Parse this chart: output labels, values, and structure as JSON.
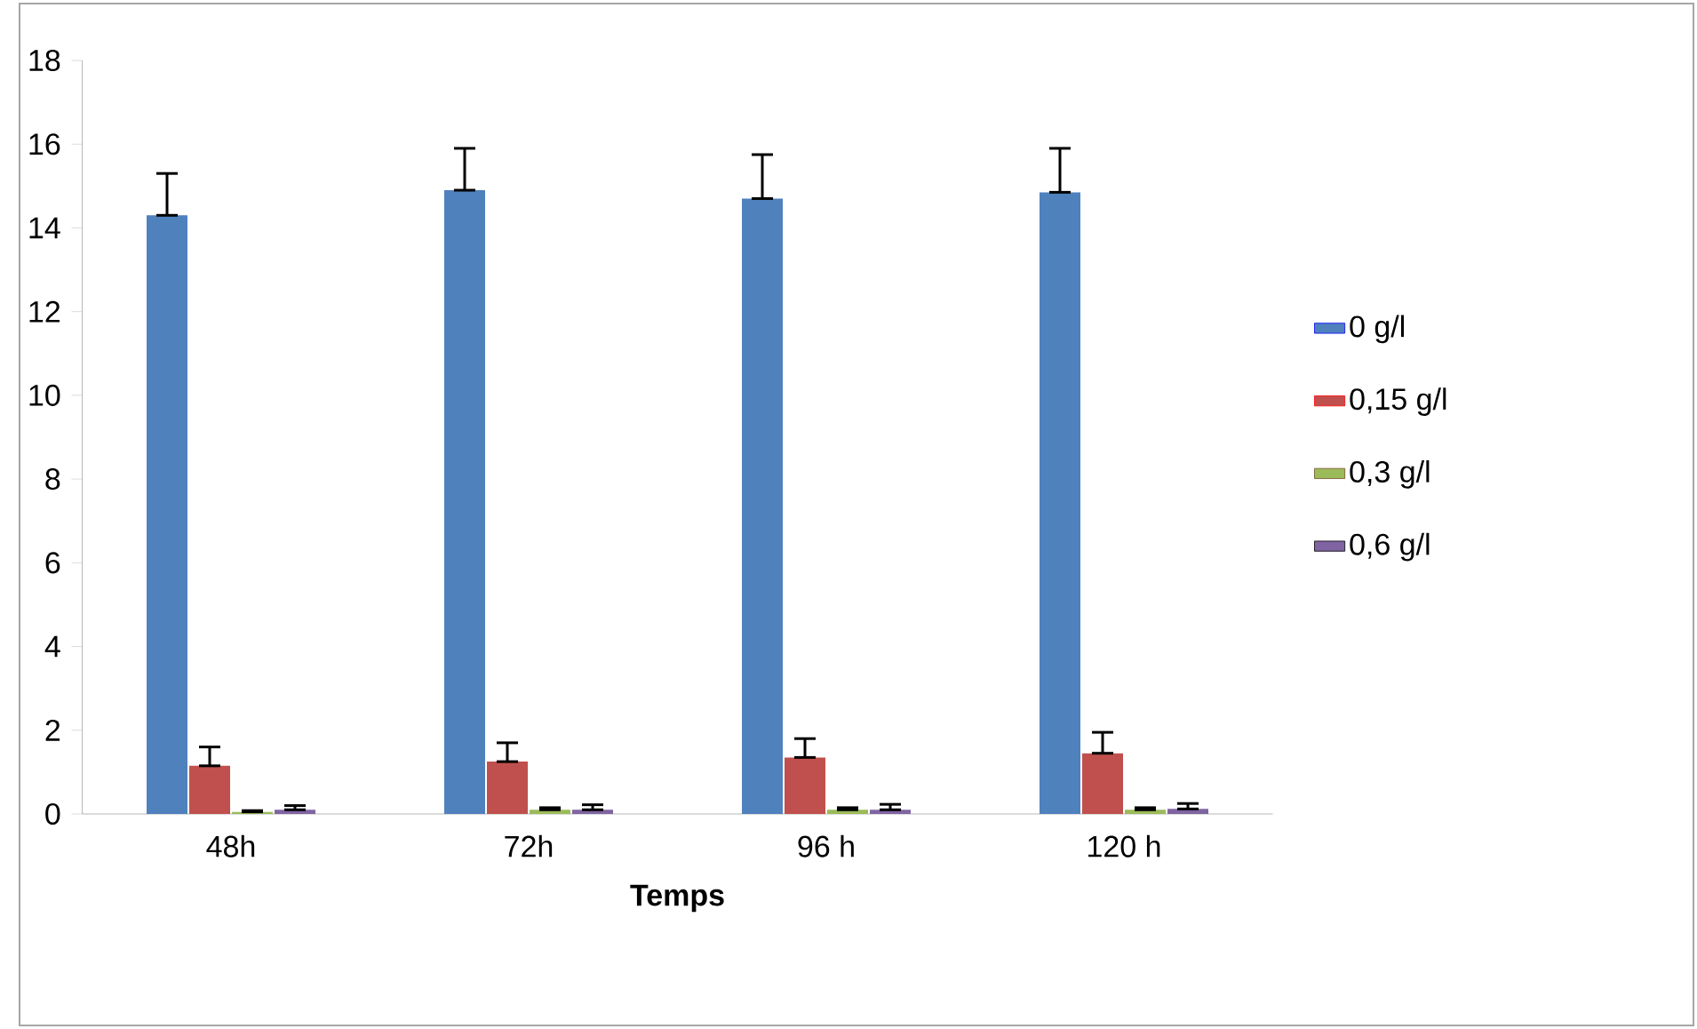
{
  "chart_data": {
    "type": "bar",
    "xlabel": "Temps",
    "categories": [
      "48h",
      "72h",
      "96 h",
      "120 h"
    ],
    "series": [
      {
        "name": "0 g/l",
        "color": "#4f81bd",
        "values": [
          14.3,
          14.9,
          14.7,
          14.85
        ],
        "errors": [
          [
            14.3,
            15.3
          ],
          [
            14.9,
            15.9
          ],
          [
            14.7,
            15.75
          ],
          [
            14.85,
            15.9
          ]
        ]
      },
      {
        "name": "0,15 g/l",
        "color": "#c0504d",
        "values": [
          1.15,
          1.25,
          1.35,
          1.45
        ],
        "errors": [
          [
            1.15,
            1.6
          ],
          [
            1.25,
            1.7
          ],
          [
            1.35,
            1.8
          ],
          [
            1.45,
            1.95
          ]
        ]
      },
      {
        "name": "0,3 g/l",
        "color": "#9bbb59",
        "values": [
          0.05,
          0.1,
          0.1,
          0.1
        ],
        "errors": [
          [
            0.05,
            0.08
          ],
          [
            0.1,
            0.15
          ],
          [
            0.1,
            0.15
          ],
          [
            0.1,
            0.15
          ]
        ]
      },
      {
        "name": "0,6 g/l",
        "color": "#8064a2",
        "values": [
          0.1,
          0.1,
          0.1,
          0.12
        ],
        "errors": [
          [
            0.1,
            0.2
          ],
          [
            0.1,
            0.22
          ],
          [
            0.1,
            0.23
          ],
          [
            0.12,
            0.25
          ]
        ]
      }
    ],
    "ylim": [
      0,
      18
    ],
    "yticks": [
      0,
      2,
      4,
      6,
      8,
      10,
      12,
      14,
      16,
      18
    ],
    "grid": false,
    "legend": "right"
  }
}
